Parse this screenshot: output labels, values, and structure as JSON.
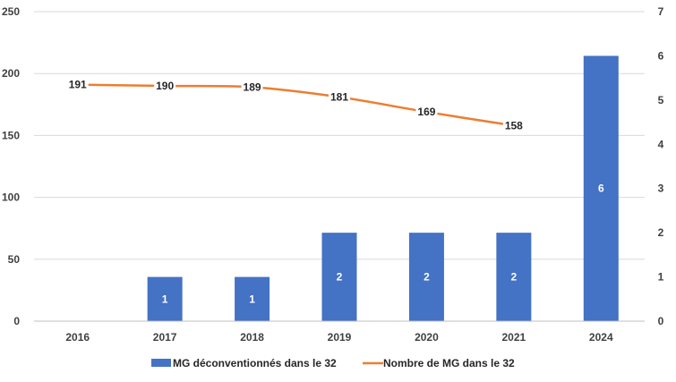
{
  "chart_data": {
    "type": "bar",
    "categories": [
      "2016",
      "2017",
      "2018",
      "2019",
      "2020",
      "2021",
      "2024"
    ],
    "series": [
      {
        "name": "MG déconventionnés dans le 32",
        "type": "bar",
        "axis": "secondary",
        "color": "#4472c4",
        "values": [
          null,
          1,
          1,
          2,
          2,
          2,
          6
        ],
        "labels": [
          "",
          "1",
          "1",
          "2",
          "2",
          "2",
          "6"
        ]
      },
      {
        "name": "Nombre de MG dans le 32",
        "type": "line",
        "axis": "primary",
        "color": "#ed7d31",
        "values": [
          191,
          190,
          189,
          181,
          169,
          158,
          null
        ],
        "labels": [
          "191",
          "190",
          "189",
          "181",
          "169",
          "158",
          ""
        ]
      }
    ],
    "y_left": {
      "range": [
        0,
        250
      ],
      "ticks": [
        "0",
        "50",
        "100",
        "150",
        "200",
        "250"
      ]
    },
    "y_right": {
      "range": [
        0,
        7
      ],
      "ticks": [
        "0",
        "1",
        "2",
        "3",
        "4",
        "5",
        "6",
        "7"
      ]
    },
    "grid": true,
    "legend": "bottom",
    "title": "",
    "xlabel": "",
    "ylabel": ""
  }
}
